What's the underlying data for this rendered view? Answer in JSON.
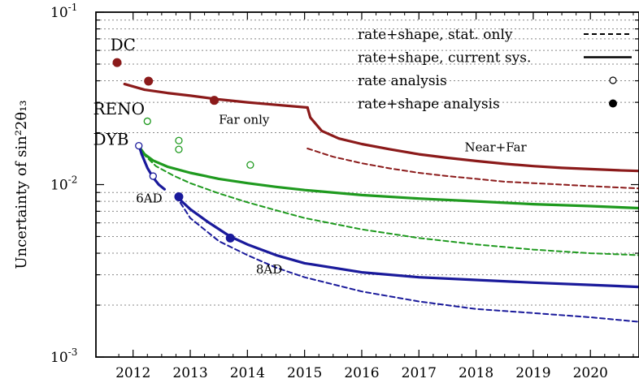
{
  "chart_data": {
    "type": "line",
    "ylabel": "Uncertainty of sin²2θ₁₃",
    "yscale": "log",
    "ylim": [
      0.001,
      0.1
    ],
    "xlim": [
      2011.35,
      2020.85
    ],
    "grid": "horizontal dotted at minor decades",
    "xticks": [
      2012,
      2013,
      2014,
      2015,
      2016,
      2017,
      2018,
      2019,
      2020
    ],
    "xtick_labels": [
      "2012",
      "2013",
      "2014",
      "2015",
      "2016",
      "2017",
      "2018",
      "2019",
      "2020"
    ],
    "ytick_labels": [
      {
        "value": 0.1,
        "base": "10",
        "exp": "-1"
      },
      {
        "value": 0.01,
        "base": "10",
        "exp": "-2"
      },
      {
        "value": 0.001,
        "base": "10",
        "exp": "-3"
      }
    ],
    "legend_position": "top-right",
    "legend": [
      {
        "label": "rate+shape, stat. only",
        "style": "dashed"
      },
      {
        "label": "rate+shape, current sys.",
        "style": "solid"
      },
      {
        "label": "rate analysis",
        "style": "open-circle"
      },
      {
        "label": "rate+shape analysis",
        "style": "filled-circle"
      }
    ],
    "experiments": [
      {
        "name": "DC",
        "color": "#8b1a1a",
        "curves": [
          {
            "style": "solid",
            "points": [
              [
                2011.85,
                0.0383
              ],
              [
                2012.2,
                0.0355
              ],
              [
                2012.6,
                0.034
              ],
              [
                2013.0,
                0.0328
              ],
              [
                2013.5,
                0.0312
              ],
              [
                2014.0,
                0.03
              ],
              [
                2014.5,
                0.029
              ],
              [
                2015.05,
                0.028
              ]
            ]
          },
          {
            "style": "solid",
            "points": [
              [
                2015.05,
                0.028
              ],
              [
                2015.1,
                0.0245
              ],
              [
                2015.3,
                0.0205
              ],
              [
                2015.6,
                0.0185
              ],
              [
                2016.0,
                0.0172
              ],
              [
                2016.5,
                0.016
              ],
              [
                2017.0,
                0.015
              ],
              [
                2017.5,
                0.0143
              ],
              [
                2018.0,
                0.0137
              ],
              [
                2018.5,
                0.0132
              ],
              [
                2019.0,
                0.0128
              ],
              [
                2019.5,
                0.0125
              ],
              [
                2020.0,
                0.0123
              ],
              [
                2020.5,
                0.0121
              ],
              [
                2020.85,
                0.012
              ]
            ]
          },
          {
            "style": "dashed",
            "points": [
              [
                2015.05,
                0.0162
              ],
              [
                2015.5,
                0.0145
              ],
              [
                2016.0,
                0.0133
              ],
              [
                2016.5,
                0.0124
              ],
              [
                2017.0,
                0.0117
              ],
              [
                2017.5,
                0.0112
              ],
              [
                2018.0,
                0.0108
              ],
              [
                2018.5,
                0.0104
              ],
              [
                2019.0,
                0.0102
              ],
              [
                2019.5,
                0.01
              ],
              [
                2020.0,
                0.0098
              ],
              [
                2020.85,
                0.0095
              ]
            ]
          }
        ],
        "rate_points": [],
        "rate_shape_points": [
          [
            2011.72,
            0.051
          ],
          [
            2012.27,
            0.0398
          ],
          [
            2013.42,
            0.0308
          ]
        ]
      },
      {
        "name": "RENO",
        "color": "#1f9a1f",
        "curves": [
          {
            "style": "solid",
            "points": [
              [
                2012.1,
                0.0167
              ],
              [
                2012.2,
                0.015
              ],
              [
                2012.35,
                0.0138
              ],
              [
                2012.6,
                0.0127
              ],
              [
                2013.0,
                0.0117
              ],
              [
                2013.5,
                0.0108
              ],
              [
                2014.0,
                0.0102
              ],
              [
                2014.5,
                0.0097
              ],
              [
                2015.0,
                0.0093
              ],
              [
                2016.0,
                0.0087
              ],
              [
                2017.0,
                0.0083
              ],
              [
                2018.0,
                0.008
              ],
              [
                2019.0,
                0.0077
              ],
              [
                2020.0,
                0.0075
              ],
              [
                2020.85,
                0.0073
              ]
            ]
          },
          {
            "style": "dashed",
            "points": [
              [
                2012.1,
                0.0167
              ],
              [
                2012.2,
                0.0148
              ],
              [
                2012.4,
                0.0128
              ],
              [
                2012.7,
                0.0113
              ],
              [
                2013.0,
                0.0102
              ],
              [
                2013.5,
                0.0089
              ],
              [
                2014.0,
                0.0079
              ],
              [
                2014.5,
                0.0071
              ],
              [
                2015.0,
                0.0064
              ],
              [
                2016.0,
                0.0055
              ],
              [
                2017.0,
                0.0049
              ],
              [
                2018.0,
                0.0045
              ],
              [
                2019.0,
                0.0042
              ],
              [
                2020.0,
                0.004
              ],
              [
                2020.85,
                0.0039
              ]
            ]
          }
        ],
        "rate_points": [
          [
            2012.25,
            0.0233
          ],
          [
            2012.8,
            0.018
          ],
          [
            2012.8,
            0.016
          ],
          [
            2014.05,
            0.013
          ]
        ],
        "rate_shape_points": []
      },
      {
        "name": "DYB",
        "color": "#1a1a9b",
        "curves": [
          {
            "style": "solid",
            "points": [
              [
                2012.1,
                0.017
              ],
              [
                2012.15,
                0.015
              ],
              [
                2012.25,
                0.0125
              ],
              [
                2012.35,
                0.011
              ],
              [
                2012.45,
                0.01
              ],
              [
                2012.55,
                0.0094
              ]
            ]
          },
          {
            "style": "solid",
            "points": [
              [
                2012.75,
                0.0086
              ],
              [
                2013.0,
                0.0072
              ],
              [
                2013.3,
                0.0061
              ],
              [
                2013.7,
                0.005
              ],
              [
                2014.0,
                0.0045
              ],
              [
                2014.5,
                0.0039
              ],
              [
                2015.0,
                0.0035
              ],
              [
                2016.0,
                0.0031
              ],
              [
                2017.0,
                0.0029
              ],
              [
                2018.0,
                0.0028
              ],
              [
                2019.0,
                0.0027
              ],
              [
                2020.0,
                0.00262
              ],
              [
                2020.85,
                0.00255
              ]
            ]
          },
          {
            "style": "dashed",
            "points": [
              [
                2012.75,
                0.0086
              ],
              [
                2013.0,
                0.0064
              ],
              [
                2013.5,
                0.0047
              ],
              [
                2014.0,
                0.0039
              ],
              [
                2014.5,
                0.0033
              ],
              [
                2015.0,
                0.0029
              ],
              [
                2016.0,
                0.0024
              ],
              [
                2017.0,
                0.0021
              ],
              [
                2018.0,
                0.0019
              ],
              [
                2019.0,
                0.0018
              ],
              [
                2020.0,
                0.0017
              ],
              [
                2020.85,
                0.0016
              ]
            ]
          }
        ],
        "rate_points": [
          [
            2012.1,
            0.0168
          ],
          [
            2012.35,
            0.0112
          ]
        ],
        "rate_shape_points": [
          [
            2012.8,
            0.0085
          ],
          [
            2013.7,
            0.0049
          ]
        ]
      }
    ],
    "annotations": [
      {
        "text": "DC",
        "x": 2011.6,
        "y": 0.06,
        "color": "#8b1a1a",
        "size": "large"
      },
      {
        "text": "RENO",
        "x": 2011.3,
        "y": 0.0255,
        "color": "#1f9a1f",
        "size": "large"
      },
      {
        "text": "DYB",
        "x": 2011.3,
        "y": 0.017,
        "color": "#1a1a9b",
        "size": "large"
      },
      {
        "text": "Far only",
        "x": 2013.5,
        "y": 0.0225,
        "color": "#8b1a1a",
        "size": "small"
      },
      {
        "text": "Near+Far",
        "x": 2017.8,
        "y": 0.0156,
        "color": "#8b1a1a",
        "size": "small"
      },
      {
        "text": "6AD",
        "x": 2012.05,
        "y": 0.0079,
        "color": "#1a1a9b",
        "size": "small"
      },
      {
        "text": "8AD",
        "x": 2014.15,
        "y": 0.00305,
        "color": "#1a1a9b",
        "size": "small"
      }
    ]
  }
}
